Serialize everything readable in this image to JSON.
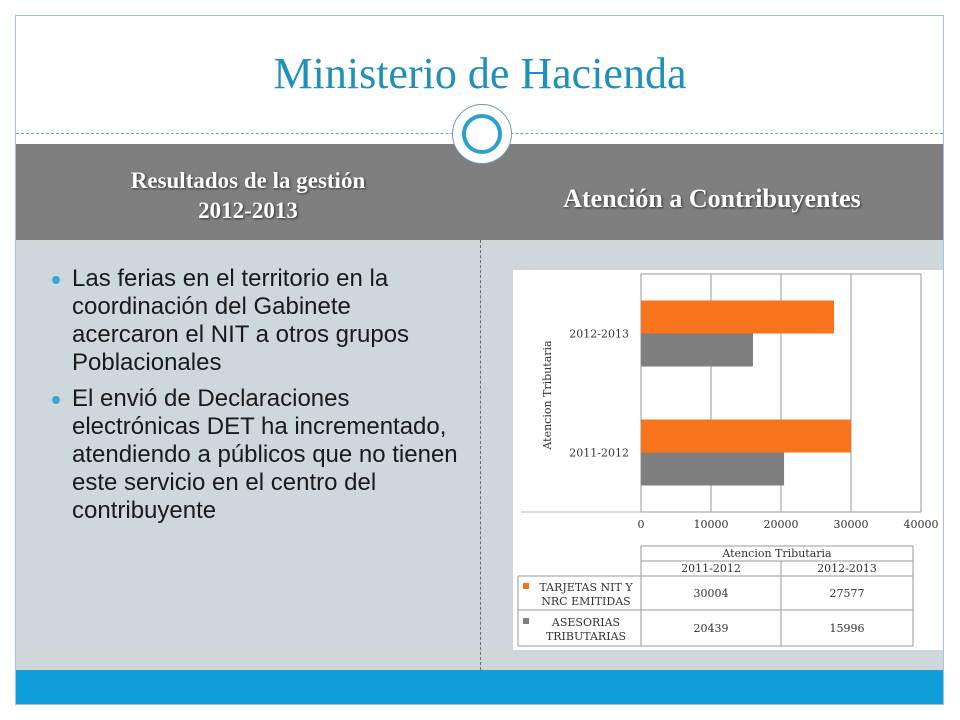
{
  "slide": {
    "title": "Ministerio de Hacienda",
    "header_left_line1": "Resultados de la gestión",
    "header_left_line2": "2012-2013",
    "header_right": "Atención a Contribuyentes",
    "bullets": [
      "Las ferias en el territorio en la coordinación del Gabinete acercaron el NIT a otros grupos Poblacionales",
      "El envió de Declaraciones electrónicas DET ha incrementado,  atendiendo a públicos que no tienen este servicio en el centro del contribuyente"
    ]
  },
  "colors": {
    "title": "#1f8fbf",
    "band": "#7f7f7f",
    "panel": "#cdd7dc",
    "accent_bar": "#109dd8",
    "series_orange": "#f7741c",
    "series_gray": "#7f7f7f"
  },
  "chart_data": {
    "type": "bar",
    "orientation": "horizontal",
    "ylabel": "Atencion Tributaria",
    "categories": [
      "2011-2012",
      "2012-2013"
    ],
    "xlim": [
      0,
      40000
    ],
    "xticks": [
      "0",
      "10000",
      "20000",
      "30000",
      "40000"
    ],
    "grid": true,
    "series": [
      {
        "name": "TARJETAS NIT Y NRC EMITIDAS",
        "values": [
          30004,
          27577
        ],
        "color": "#f7741c"
      },
      {
        "name": "ASESORIAS TRIBUTARIAS",
        "values": [
          20439,
          15996
        ],
        "color": "#7f7f7f"
      }
    ],
    "table": {
      "title": "Atencion Tributaria",
      "columns": [
        "2011-2012",
        "2012-2013"
      ],
      "rows": [
        {
          "label_line1": "TARJETAS NIT Y",
          "label_line2": "NRC EMITIDAS",
          "values": [
            "30004",
            "27577"
          ]
        },
        {
          "label_line1": "ASESORIAS",
          "label_line2": "TRIBUTARIAS",
          "values": [
            "20439",
            "15996"
          ]
        }
      ]
    }
  }
}
